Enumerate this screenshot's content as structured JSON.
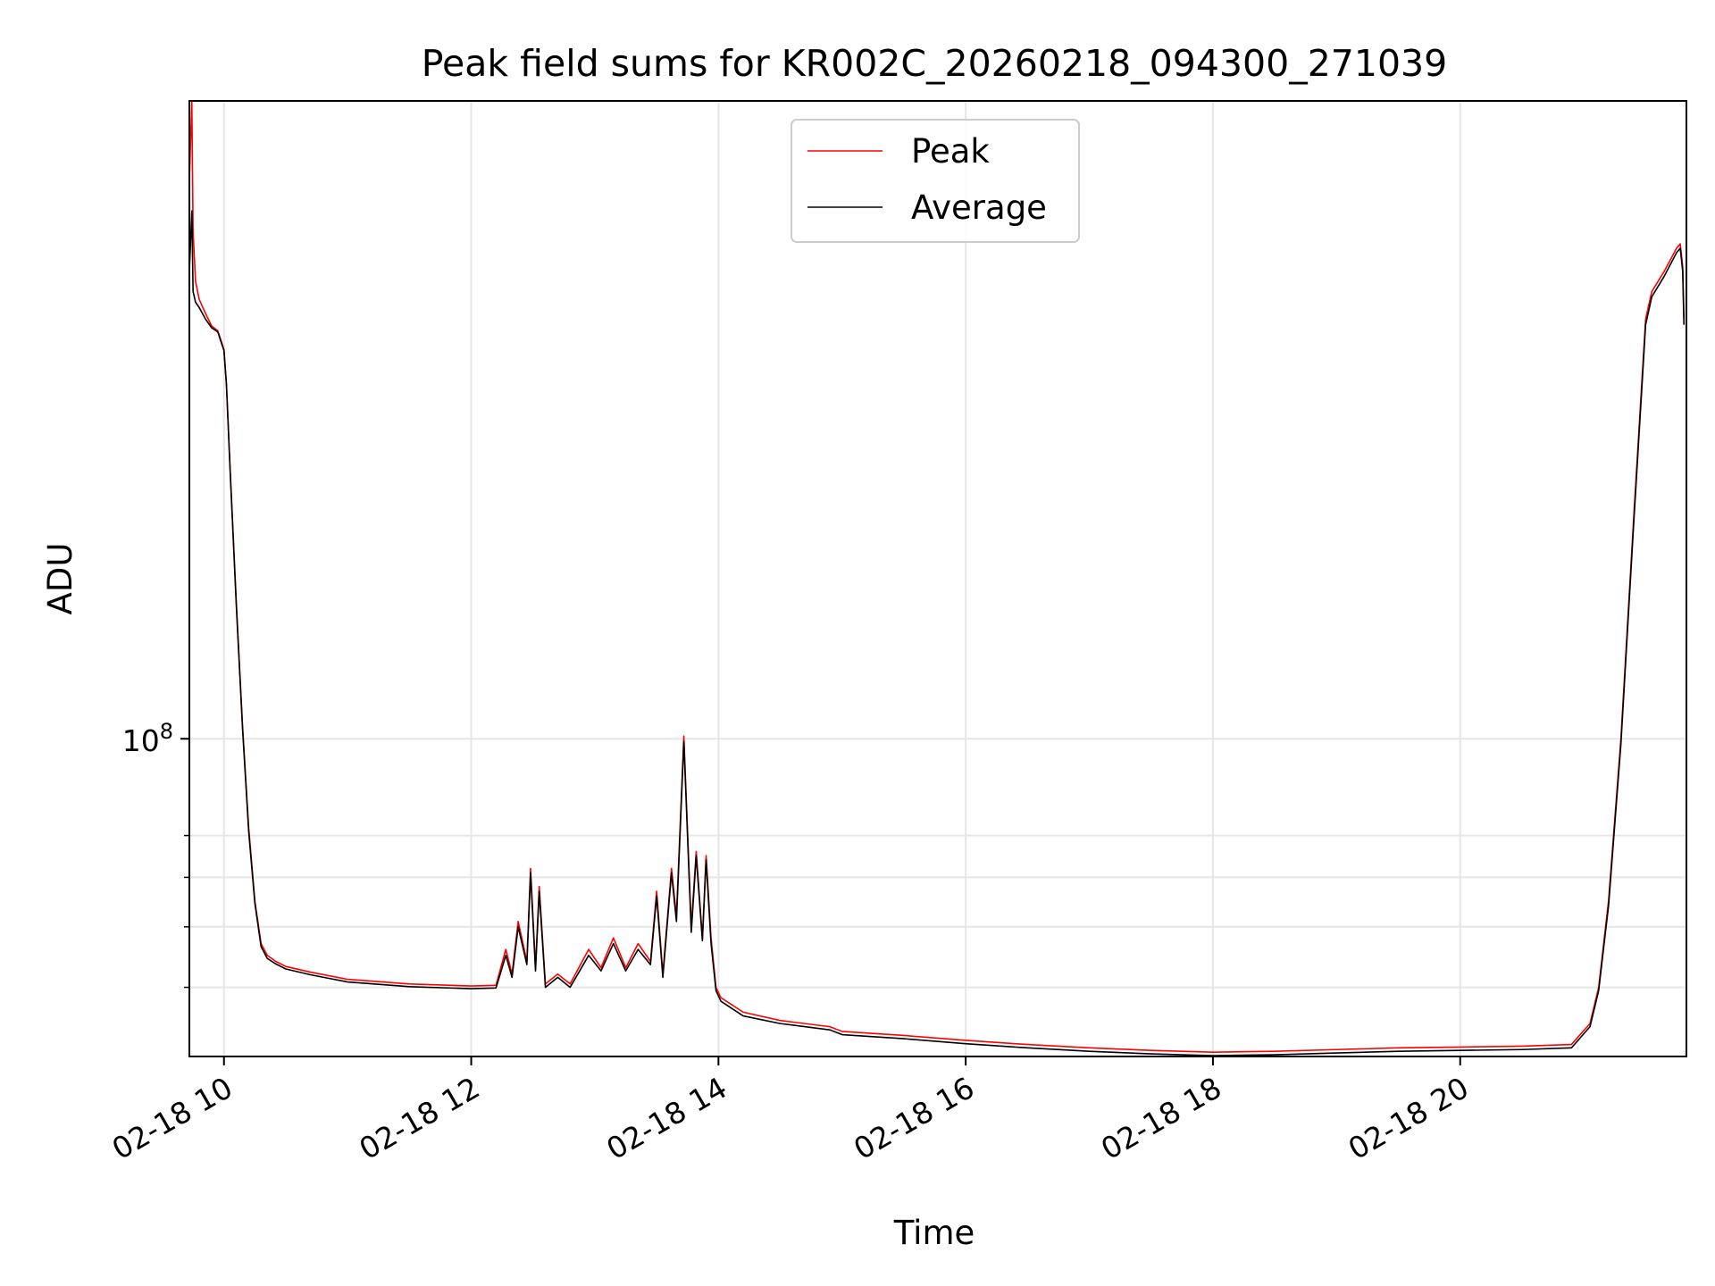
{
  "chart_data": {
    "type": "line",
    "title": "Peak field sums for KR002C_20260218_094300_271039",
    "xlabel": "Time",
    "ylabel": "ADU",
    "yscale": "log",
    "x_unit": "hours (decimal, 2026-02-18)",
    "xlim": [
      9.72,
      21.83
    ],
    "ylim": [
      31000000,
      1050000000
    ],
    "grid": true,
    "legend_position": "top-center",
    "x_ticks": [
      {
        "value": 10,
        "label": "02-18 10"
      },
      {
        "value": 12,
        "label": "02-18 12"
      },
      {
        "value": 14,
        "label": "02-18 14"
      },
      {
        "value": 16,
        "label": "02-18 16"
      },
      {
        "value": 18,
        "label": "02-18 18"
      },
      {
        "value": 20,
        "label": "02-18 20"
      }
    ],
    "y_ticks": [
      {
        "value": 100000000,
        "base": "10",
        "exp": "8"
      }
    ],
    "y_minor_ticks": [
      40000000,
      50000000,
      60000000,
      70000000
    ],
    "x": [
      9.72,
      9.74,
      9.75,
      9.77,
      9.8,
      9.85,
      9.9,
      9.95,
      10.0,
      10.02,
      10.05,
      10.1,
      10.15,
      10.2,
      10.25,
      10.3,
      10.35,
      10.42,
      10.5,
      10.7,
      11.0,
      11.5,
      12.0,
      12.2,
      12.28,
      12.33,
      12.38,
      12.45,
      12.48,
      12.52,
      12.55,
      12.6,
      12.7,
      12.8,
      12.95,
      13.05,
      13.15,
      13.25,
      13.35,
      13.45,
      13.5,
      13.55,
      13.62,
      13.66,
      13.72,
      13.78,
      13.82,
      13.87,
      13.9,
      13.94,
      13.98,
      14.02,
      14.2,
      14.5,
      14.9,
      15.0,
      15.5,
      16.0,
      16.5,
      17.0,
      17.5,
      18.0,
      18.5,
      19.0,
      19.5,
      20.0,
      20.5,
      20.9,
      21.05,
      21.12,
      21.2,
      21.3,
      21.4,
      21.5,
      21.55,
      21.65,
      21.75,
      21.78,
      21.8,
      21.81
    ],
    "series": [
      {
        "name": "Peak",
        "color": "#ff0000",
        "values": [
          780000000,
          1050000000,
          650000000,
          540000000,
          505000000,
          480000000,
          458000000,
          450000000,
          420000000,
          370000000,
          270000000,
          165000000,
          105000000,
          72000000,
          55000000,
          47000000,
          45000000,
          44000000,
          43200000,
          42300000,
          41200000,
          40500000,
          40200000,
          40300000,
          46000000,
          42000000,
          51000000,
          44000000,
          62000000,
          43000000,
          58000000,
          40500000,
          42000000,
          40500000,
          46000000,
          43000000,
          48000000,
          43000000,
          47000000,
          44000000,
          57000000,
          42000000,
          62000000,
          52000000,
          101000000,
          50000000,
          66000000,
          48000000,
          65000000,
          48000000,
          40000000,
          38500000,
          36500000,
          35400000,
          34600000,
          34000000,
          33500000,
          32900000,
          32400000,
          32000000,
          31700000,
          31500000,
          31600000,
          31800000,
          32000000,
          32100000,
          32200000,
          32400000,
          35000000,
          40000000,
          55000000,
          100000000,
          220000000,
          470000000,
          520000000,
          560000000,
          610000000,
          620000000,
          570000000,
          470000000
        ]
      },
      {
        "name": "Average",
        "color": "#000000",
        "values": [
          560000000,
          700000000,
          520000000,
          500000000,
          490000000,
          470000000,
          455000000,
          448000000,
          418000000,
          368000000,
          268000000,
          163000000,
          104000000,
          71000000,
          54500000,
          46500000,
          44500000,
          43600000,
          42800000,
          41900000,
          40800000,
          40100000,
          39800000,
          39900000,
          45000000,
          41500000,
          50000000,
          43500000,
          61000000,
          42500000,
          57000000,
          40000000,
          41500000,
          40000000,
          45000000,
          42500000,
          47000000,
          42500000,
          46000000,
          43500000,
          56000000,
          41500000,
          61000000,
          51000000,
          99000000,
          49000000,
          65000000,
          47500000,
          64000000,
          47000000,
          39500000,
          38000000,
          36000000,
          35000000,
          34200000,
          33600000,
          33100000,
          32500000,
          32000000,
          31600000,
          31300000,
          31100000,
          31200000,
          31400000,
          31600000,
          31700000,
          31800000,
          32000000,
          34600000,
          39500000,
          54000000,
          98000000,
          215000000,
          460000000,
          510000000,
          550000000,
          600000000,
          610000000,
          560000000,
          460000000
        ]
      }
    ]
  }
}
